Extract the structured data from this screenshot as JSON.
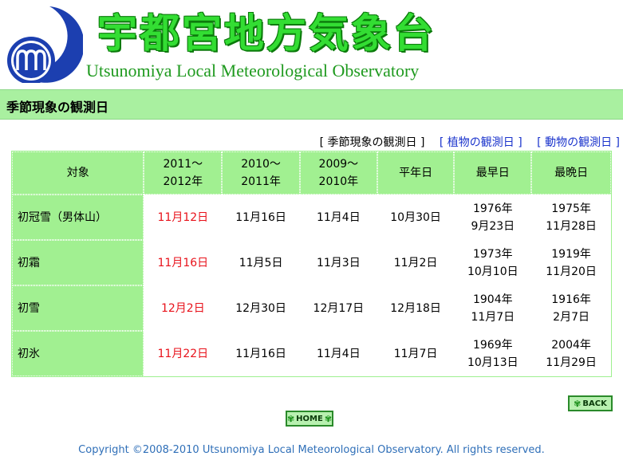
{
  "header": {
    "title_jp": "宇都宮地方気象台",
    "title_en": "Utsunomiya Local Meteorological Observatory"
  },
  "section": {
    "title": "季節現象の観測日"
  },
  "nav": {
    "items": [
      {
        "label": "[ 季節現象の観測日 ]",
        "current": true
      },
      {
        "label": "[ 植物の観測日 ]",
        "current": false
      },
      {
        "label": "[ 動物の観測日 ]",
        "current": false
      }
    ]
  },
  "table": {
    "headers": [
      {
        "line1": "対象",
        "line2": ""
      },
      {
        "line1": "2011～",
        "line2": "2012年"
      },
      {
        "line1": "2010～",
        "line2": "2011年"
      },
      {
        "line1": "2009～",
        "line2": "2010年"
      },
      {
        "line1": "平年日",
        "line2": ""
      },
      {
        "line1": "最早日",
        "line2": ""
      },
      {
        "line1": "最晩日",
        "line2": ""
      }
    ],
    "rows": [
      {
        "label": "初冠雪（男体山）",
        "y2011": "11月12日",
        "y2010": "11月16日",
        "y2009": "11月4日",
        "normal": "10月30日",
        "earliest_year": "1976年",
        "earliest_date": "9月23日",
        "latest_year": "1975年",
        "latest_date": "11月28日"
      },
      {
        "label": "初霜",
        "y2011": "11月16日",
        "y2010": "11月5日",
        "y2009": "11月3日",
        "normal": "11月2日",
        "earliest_year": "1973年",
        "earliest_date": "10月10日",
        "latest_year": "1919年",
        "latest_date": "11月20日"
      },
      {
        "label": "初雪",
        "y2011": "12月2日",
        "y2010": "12月30日",
        "y2009": "12月17日",
        "normal": "12月18日",
        "earliest_year": "1904年",
        "earliest_date": "11月7日",
        "latest_year": "1916年",
        "latest_date": "2月7日"
      },
      {
        "label": "初氷",
        "y2011": "11月22日",
        "y2010": "11月16日",
        "y2009": "11月4日",
        "normal": "11月7日",
        "earliest_year": "1969年",
        "earliest_date": "10月13日",
        "latest_year": "2004年",
        "latest_date": "11月29日"
      }
    ]
  },
  "buttons": {
    "back": "BACK",
    "home": "HOME"
  },
  "icons": {
    "back_leaf": "maple-leaf-icon",
    "home_leaf": "maple-leaf-icon",
    "logo": "observatory-logo"
  },
  "colors": {
    "accent_green": "#a1f091",
    "title_green": "#33dd33",
    "highlight_red": "#e8121b",
    "link_blue": "#1a33cc"
  },
  "footer": {
    "copyright": "Copyright ©2008-2010 Utsunomiya Local Meteorological Observatory. All rights reserved."
  }
}
